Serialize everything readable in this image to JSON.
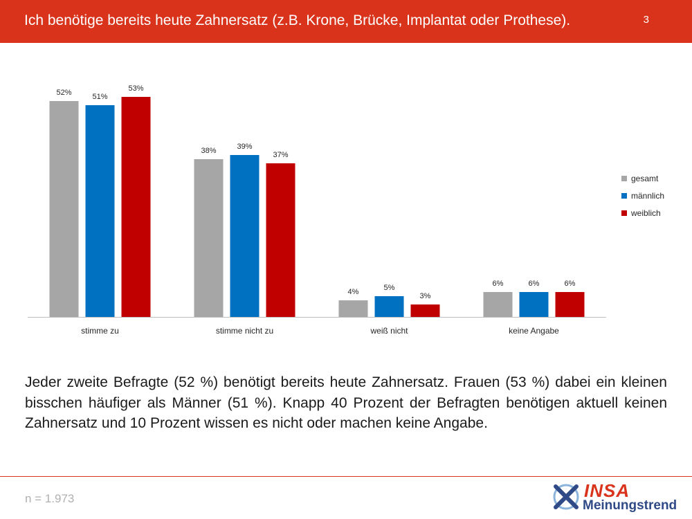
{
  "header": {
    "title": "Ich benötige bereits heute Zahnersatz (z.B. Krone, Brücke, Implantat oder Prothese).",
    "page_number": "3"
  },
  "chart_data": {
    "type": "bar",
    "categories": [
      "stimme zu",
      "stimme nicht zu",
      "weiß nicht",
      "keine Angabe"
    ],
    "series": [
      {
        "name": "gesamt",
        "color": "#a6a6a6",
        "values": [
          52,
          38,
          4,
          6
        ]
      },
      {
        "name": "männlich",
        "color": "#0070c0",
        "values": [
          51,
          39,
          5,
          6
        ]
      },
      {
        "name": "weiblich",
        "color": "#c00000",
        "values": [
          53,
          37,
          3,
          6
        ]
      }
    ],
    "value_suffix": "%",
    "ylim": [
      0,
      60
    ],
    "legend": "right",
    "grid": false
  },
  "summary": "Jeder zweite Befragte (52 %) benötigt bereits heute Zahnersatz. Frauen (53 %) dabei ein kleinen bisschen häufiger als Männer (51 %). Knapp 40 Prozent der Befragten benötigen aktuell keinen Zahnersatz und 10 Prozent wissen es nicht oder machen keine Angabe.",
  "footer": {
    "sample_size": "n = 1.973",
    "logo_brand": "INSA",
    "logo_subtitle": "Meinungstrend"
  },
  "colors": {
    "accent": "#d9331b",
    "logo_blue": "#2f4a86"
  }
}
